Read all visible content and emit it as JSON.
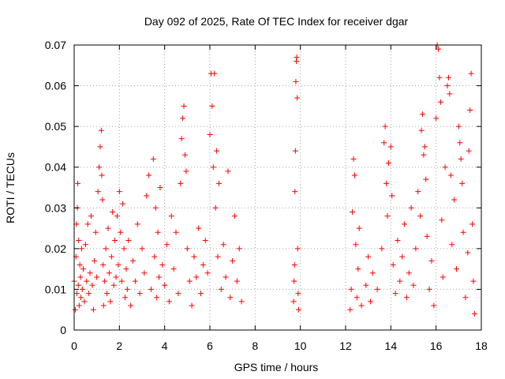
{
  "chart_data": {
    "type": "scatter",
    "title": "Day 092 of 2025, Rate Of TEC Index for receiver dgar",
    "xlabel": "GPS time / hours",
    "ylabel": "ROTI / TECUs",
    "xlim": [
      0,
      18
    ],
    "ylim": [
      0,
      0.07
    ],
    "x_ticks": [
      0,
      2,
      4,
      6,
      8,
      10,
      12,
      14,
      16,
      18
    ],
    "x_tick_labels": [
      "0",
      "2",
      "4",
      "6",
      "8",
      "10",
      "12",
      "14",
      "16",
      "18"
    ],
    "y_ticks": [
      0,
      0.01,
      0.02,
      0.03,
      0.04,
      0.05,
      0.06,
      0.07
    ],
    "y_tick_labels": [
      "0",
      "0.01",
      "0.02",
      "0.03",
      "0.04",
      "0.05",
      "0.06",
      "0.07"
    ],
    "grid": true,
    "marker": "+",
    "color": "#ff0000",
    "series": [
      {
        "points": [
          [
            0.0,
            0.012
          ],
          [
            0.05,
            0.005
          ],
          [
            0.08,
            0.018
          ],
          [
            0.1,
            0.026
          ],
          [
            0.12,
            0.009
          ],
          [
            0.14,
            0.03
          ],
          [
            0.16,
            0.036
          ],
          [
            0.18,
            0.011
          ],
          [
            0.2,
            0.022
          ],
          [
            0.22,
            0.006
          ],
          [
            0.25,
            0.016
          ],
          [
            0.28,
            0.013
          ],
          [
            0.3,
            0.008
          ],
          [
            0.33,
            0.02
          ],
          [
            0.36,
            0.01
          ],
          [
            0.4,
            0.015
          ],
          [
            0.45,
            0.007
          ],
          [
            0.5,
            0.021
          ],
          [
            0.55,
            0.012
          ],
          [
            0.6,
            0.026
          ],
          [
            0.65,
            0.009
          ],
          [
            0.7,
            0.014
          ],
          [
            0.75,
            0.028
          ],
          [
            0.8,
            0.011
          ],
          [
            0.85,
            0.005
          ],
          [
            0.9,
            0.017
          ],
          [
            0.95,
            0.024
          ],
          [
            1.0,
            0.013
          ],
          [
            1.05,
            0.034
          ],
          [
            1.1,
            0.04
          ],
          [
            1.15,
            0.045
          ],
          [
            1.2,
            0.049
          ],
          [
            1.22,
            0.038
          ],
          [
            1.25,
            0.032
          ],
          [
            1.28,
            0.016
          ],
          [
            1.3,
            0.006
          ],
          [
            1.35,
            0.012
          ],
          [
            1.4,
            0.02
          ],
          [
            1.45,
            0.009
          ],
          [
            1.5,
            0.025
          ],
          [
            1.55,
            0.014
          ],
          [
            1.6,
            0.007
          ],
          [
            1.65,
            0.018
          ],
          [
            1.7,
            0.029
          ],
          [
            1.75,
            0.011
          ],
          [
            1.8,
            0.022
          ],
          [
            1.85,
            0.013
          ],
          [
            1.9,
            0.028
          ],
          [
            1.95,
            0.016
          ],
          [
            2.0,
            0.034
          ],
          [
            2.05,
            0.024
          ],
          [
            2.1,
            0.012
          ],
          [
            2.15,
            0.031
          ],
          [
            2.2,
            0.02
          ],
          [
            2.25,
            0.008
          ],
          [
            2.3,
            0.015
          ],
          [
            2.35,
            0.01
          ],
          [
            2.4,
            0.022
          ],
          [
            2.5,
            0.006
          ],
          [
            2.6,
            0.017
          ],
          [
            2.7,
            0.012
          ],
          [
            2.8,
            0.026
          ],
          [
            2.9,
            0.009
          ],
          [
            3.0,
            0.02
          ],
          [
            3.1,
            0.014
          ],
          [
            3.2,
            0.033
          ],
          [
            3.3,
            0.038
          ],
          [
            3.4,
            0.01
          ],
          [
            3.5,
            0.042
          ],
          [
            3.55,
            0.018
          ],
          [
            3.6,
            0.03
          ],
          [
            3.65,
            0.008
          ],
          [
            3.7,
            0.024
          ],
          [
            3.75,
            0.013
          ],
          [
            3.8,
            0.035
          ],
          [
            3.9,
            0.016
          ],
          [
            4.0,
            0.011
          ],
          [
            4.1,
            0.021
          ],
          [
            4.2,
            0.007
          ],
          [
            4.3,
            0.028
          ],
          [
            4.4,
            0.015
          ],
          [
            4.5,
            0.024
          ],
          [
            4.6,
            0.009
          ],
          [
            4.7,
            0.036
          ],
          [
            4.75,
            0.047
          ],
          [
            4.8,
            0.052
          ],
          [
            4.85,
            0.055
          ],
          [
            4.9,
            0.043
          ],
          [
            4.95,
            0.039
          ],
          [
            5.0,
            0.02
          ],
          [
            5.1,
            0.012
          ],
          [
            5.2,
            0.006
          ],
          [
            5.3,
            0.018
          ],
          [
            5.4,
            0.013
          ],
          [
            5.5,
            0.025
          ],
          [
            5.6,
            0.009
          ],
          [
            5.7,
            0.016
          ],
          [
            5.8,
            0.022
          ],
          [
            5.9,
            0.014
          ],
          [
            6.0,
            0.048
          ],
          [
            6.05,
            0.063
          ],
          [
            6.1,
            0.055
          ],
          [
            6.15,
            0.04
          ],
          [
            6.2,
            0.063
          ],
          [
            6.25,
            0.03
          ],
          [
            6.3,
            0.044
          ],
          [
            6.35,
            0.018
          ],
          [
            6.4,
            0.036
          ],
          [
            6.5,
            0.01
          ],
          [
            6.6,
            0.021
          ],
          [
            6.7,
            0.013
          ],
          [
            6.8,
            0.039
          ],
          [
            6.9,
            0.008
          ],
          [
            7.0,
            0.017
          ],
          [
            7.1,
            0.028
          ],
          [
            7.2,
            0.012
          ],
          [
            7.3,
            0.02
          ],
          [
            7.4,
            0.007
          ],
          [
            9.7,
            0.007
          ],
          [
            9.72,
            0.012
          ],
          [
            9.74,
            0.016
          ],
          [
            9.76,
            0.034
          ],
          [
            9.78,
            0.044
          ],
          [
            9.8,
            0.061
          ],
          [
            9.82,
            0.066
          ],
          [
            9.84,
            0.067
          ],
          [
            9.86,
            0.057
          ],
          [
            9.88,
            0.02
          ],
          [
            9.9,
            0.009
          ],
          [
            9.92,
            0.005
          ],
          [
            12.2,
            0.005
          ],
          [
            12.25,
            0.01
          ],
          [
            12.3,
            0.029
          ],
          [
            12.35,
            0.042
          ],
          [
            12.4,
            0.038
          ],
          [
            12.45,
            0.021
          ],
          [
            12.5,
            0.008
          ],
          [
            12.55,
            0.015
          ],
          [
            12.6,
            0.025
          ],
          [
            12.7,
            0.006
          ],
          [
            12.9,
            0.011
          ],
          [
            13.0,
            0.018
          ],
          [
            13.1,
            0.007
          ],
          [
            13.2,
            0.014
          ],
          [
            13.4,
            0.01
          ],
          [
            13.6,
            0.02
          ],
          [
            13.7,
            0.046
          ],
          [
            13.75,
            0.05
          ],
          [
            13.8,
            0.036
          ],
          [
            13.85,
            0.028
          ],
          [
            13.9,
            0.041
          ],
          [
            14.0,
            0.045
          ],
          [
            14.05,
            0.033
          ],
          [
            14.1,
            0.016
          ],
          [
            14.2,
            0.009
          ],
          [
            14.3,
            0.022
          ],
          [
            14.4,
            0.012
          ],
          [
            14.5,
            0.018
          ],
          [
            14.6,
            0.026
          ],
          [
            14.7,
            0.008
          ],
          [
            14.8,
            0.014
          ],
          [
            14.9,
            0.03
          ],
          [
            15.0,
            0.011
          ],
          [
            15.1,
            0.02
          ],
          [
            15.2,
            0.034
          ],
          [
            15.3,
            0.028
          ],
          [
            15.35,
            0.049
          ],
          [
            15.4,
            0.053
          ],
          [
            15.45,
            0.043
          ],
          [
            15.5,
            0.045
          ],
          [
            15.55,
            0.037
          ],
          [
            15.6,
            0.023
          ],
          [
            15.7,
            0.01
          ],
          [
            15.8,
            0.017
          ],
          [
            15.9,
            0.006
          ],
          [
            16.0,
            0.052
          ],
          [
            16.05,
            0.07
          ],
          [
            16.1,
            0.069
          ],
          [
            16.15,
            0.062
          ],
          [
            16.2,
            0.056
          ],
          [
            16.25,
            0.027
          ],
          [
            16.3,
            0.013
          ],
          [
            16.4,
            0.04
          ],
          [
            16.5,
            0.06
          ],
          [
            16.55,
            0.062
          ],
          [
            16.6,
            0.058
          ],
          [
            16.65,
            0.038
          ],
          [
            16.7,
            0.021
          ],
          [
            16.8,
            0.032
          ],
          [
            16.9,
            0.015
          ],
          [
            17.0,
            0.05
          ],
          [
            17.05,
            0.046
          ],
          [
            17.1,
            0.042
          ],
          [
            17.15,
            0.036
          ],
          [
            17.2,
            0.024
          ],
          [
            17.3,
            0.008
          ],
          [
            17.4,
            0.019
          ],
          [
            17.45,
            0.044
          ],
          [
            17.5,
            0.054
          ],
          [
            17.55,
            0.063
          ],
          [
            17.6,
            0.026
          ],
          [
            17.65,
            0.012
          ],
          [
            17.7,
            0.004
          ]
        ]
      }
    ]
  }
}
